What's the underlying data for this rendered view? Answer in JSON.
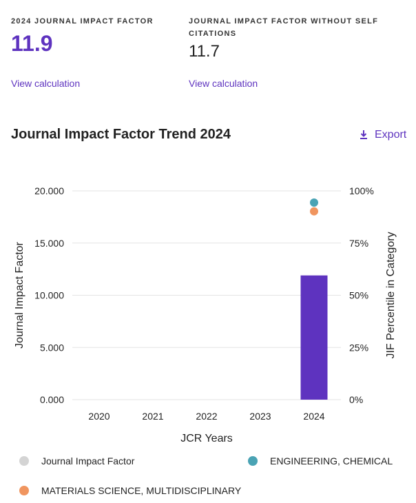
{
  "metrics": {
    "jif": {
      "label": "2024 JOURNAL IMPACT FACTOR",
      "value": "11.9",
      "link": "View calculation"
    },
    "jif_noself": {
      "label": "JOURNAL IMPACT FACTOR WITHOUT SELF CITATIONS",
      "value": "11.7",
      "link": "View calculation"
    }
  },
  "section": {
    "title": "Journal Impact Factor Trend 2024",
    "export_label": "Export"
  },
  "colors": {
    "accent": "#5e33bf",
    "jif": "#5e33bf",
    "legend_jif": "#d4d4d4",
    "engineering": "#4aa3b4",
    "materials": "#f0955f"
  },
  "chart_data": {
    "type": "bar",
    "title": "Journal Impact Factor Trend 2024",
    "xlabel": "JCR Years",
    "ylabel": "Journal Impact Factor",
    "y2label": "JIF Percentile in Category",
    "categories": [
      "2020",
      "2021",
      "2022",
      "2023",
      "2024"
    ],
    "ylim": [
      0,
      20
    ],
    "y_ticks": [
      "0.000",
      "5.000",
      "10.000",
      "15.000",
      "20.000"
    ],
    "y2lim": [
      0,
      100
    ],
    "y2_ticks": [
      "0%",
      "25%",
      "50%",
      "75%",
      "100%"
    ],
    "series": [
      {
        "name": "Journal Impact Factor",
        "kind": "bar",
        "axis": "left",
        "values": [
          null,
          null,
          null,
          null,
          11.9
        ]
      },
      {
        "name": "ENGINEERING, CHEMICAL",
        "kind": "point",
        "axis": "right",
        "values": [
          null,
          null,
          null,
          null,
          94.4
        ]
      },
      {
        "name": "MATERIALS SCIENCE, MULTIDISCIPLINARY",
        "kind": "point",
        "axis": "right",
        "values": [
          null,
          null,
          null,
          null,
          90.2
        ]
      }
    ],
    "legend": [
      "Journal Impact Factor",
      "ENGINEERING, CHEMICAL",
      "MATERIALS SCIENCE, MULTIDISCIPLINARY"
    ],
    "grid": true
  }
}
